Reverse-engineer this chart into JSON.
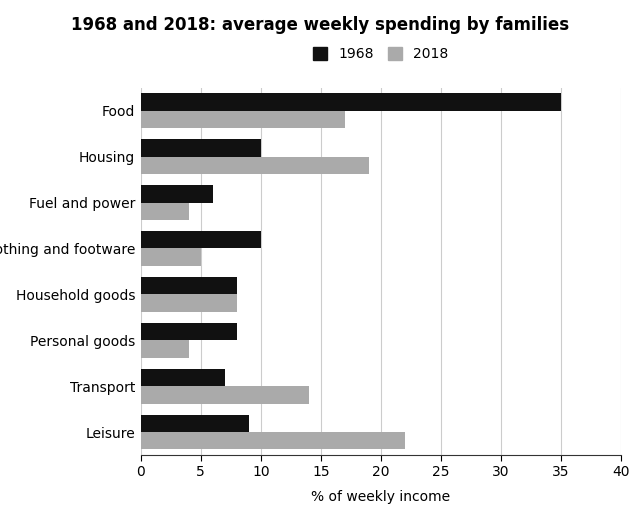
{
  "title": "1968 and 2018: average weekly spending by families",
  "xlabel": "% of weekly income",
  "categories": [
    "Food",
    "Housing",
    "Fuel and power",
    "Clothing and footware",
    "Household goods",
    "Personal goods",
    "Transport",
    "Leisure"
  ],
  "values_1968": [
    35,
    10,
    6,
    10,
    8,
    8,
    7,
    9
  ],
  "values_2018": [
    17,
    19,
    4,
    5,
    8,
    4,
    14,
    22
  ],
  "color_1968": "#111111",
  "color_2018": "#aaaaaa",
  "xlim": [
    0,
    40
  ],
  "xticks": [
    0,
    5,
    10,
    15,
    20,
    25,
    30,
    35,
    40
  ],
  "legend_labels": [
    "1968",
    "2018"
  ],
  "bar_height": 0.38,
  "figsize": [
    6.4,
    5.17
  ],
  "dpi": 100,
  "title_fontsize": 12,
  "label_fontsize": 10,
  "tick_fontsize": 10
}
